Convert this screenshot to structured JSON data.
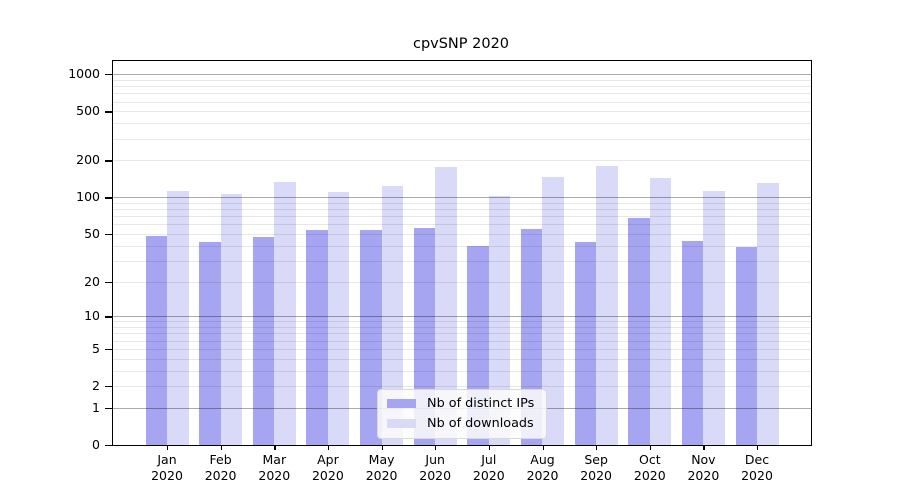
{
  "chart_data": {
    "type": "bar",
    "title": "cpvSNP 2020",
    "categories": [
      "Jan 2020",
      "Feb 2020",
      "Mar 2020",
      "Apr 2020",
      "May 2020",
      "Jun 2020",
      "Jul 2020",
      "Aug 2020",
      "Sep 2020",
      "Oct 2020",
      "Nov 2020",
      "Dec 2020"
    ],
    "x_tick_months": [
      "Jan",
      "Feb",
      "Mar",
      "Apr",
      "May",
      "Jun",
      "Jul",
      "Aug",
      "Sep",
      "Oct",
      "Nov",
      "Dec"
    ],
    "x_tick_year": "2020",
    "series": [
      {
        "name": "Nb of distinct IPs",
        "color": "#a5a5f2",
        "values": [
          48,
          43,
          47,
          54,
          54,
          56,
          40,
          55,
          43,
          68,
          44,
          39
        ]
      },
      {
        "name": "Nb of downloads",
        "color": "#d9d9f8",
        "values": [
          113,
          106,
          133,
          110,
          124,
          176,
          102,
          146,
          180,
          143,
          112,
          132
        ]
      }
    ],
    "y_axis": {
      "scale": "log10(value+1)",
      "ticks": [
        0,
        1,
        2,
        5,
        10,
        20,
        50,
        100,
        200,
        500,
        1000
      ],
      "ylim": [
        0,
        1250
      ],
      "major_gridlines": [
        1,
        10,
        100,
        1000
      ],
      "minor_gridlines": [
        2,
        3,
        4,
        5,
        6,
        7,
        8,
        9,
        20,
        30,
        40,
        50,
        60,
        70,
        80,
        90,
        200,
        300,
        400,
        500,
        600,
        700,
        800,
        900
      ]
    },
    "legend": {
      "position": "inside-bottom-center"
    },
    "colors": {
      "bar_dark": "#a5a5f2",
      "bar_light": "#d9d9f8",
      "grid_major": "#ababab",
      "grid_minor": "#e8e8e8",
      "spine": "#000000"
    }
  }
}
